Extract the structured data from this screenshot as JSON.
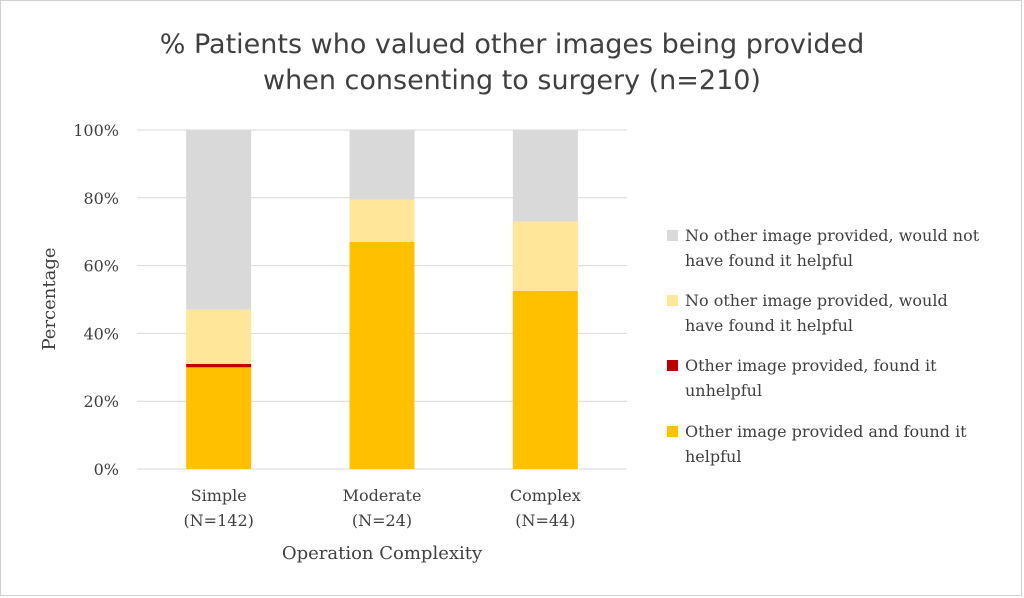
{
  "chart_data": {
    "type": "bar",
    "stacked": true,
    "title_lines": [
      "% Patients who valued other images being provided",
      "when consenting to surgery (n=210)"
    ],
    "xlabel": "Operation Complexity",
    "ylabel": "Percentage",
    "ylim": [
      0,
      100
    ],
    "yticks": [
      0,
      20,
      40,
      60,
      80,
      100
    ],
    "ytick_labels": [
      "0%",
      "20%",
      "40%",
      "60%",
      "80%",
      "100%"
    ],
    "grid": true,
    "legend_position": "right",
    "categories": [
      {
        "name": "Simple",
        "n_label": "(N=142)"
      },
      {
        "name": "Moderate",
        "n_label": "(N=24)"
      },
      {
        "name": "Complex",
        "n_label": "(N=44)"
      }
    ],
    "series": [
      {
        "name": "Other image provided and found it helpful",
        "legend_lines": [
          "Other image provided and found it",
          "helpful"
        ],
        "color": "#FFC000",
        "values": [
          30,
          67,
          52.5
        ]
      },
      {
        "name": "Other image provided, found it unhelpful",
        "legend_lines": [
          "Other image provided, found it",
          "unhelpful"
        ],
        "color": "#C00000",
        "values": [
          1,
          0,
          0
        ]
      },
      {
        "name": "No other image provided, would have found it helpful",
        "legend_lines": [
          "No other image provided, would",
          "have found it helpful"
        ],
        "color": "#FFE699",
        "values": [
          16,
          12.5,
          20.5
        ]
      },
      {
        "name": "No other image provided, would not have found it helpful",
        "legend_lines": [
          "No other image provided, would not",
          "have found it helpful"
        ],
        "color": "#D9D9D9",
        "values": [
          53,
          20.5,
          27
        ]
      }
    ]
  }
}
